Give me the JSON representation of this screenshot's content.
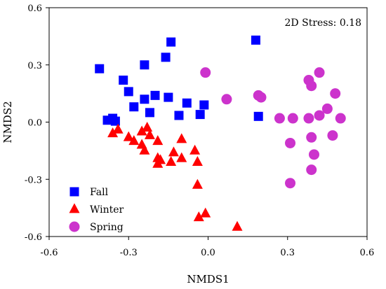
{
  "chart_data": {
    "type": "scatter",
    "xlabel": "NMDS1",
    "ylabel": "NMDS2",
    "xlim": [
      -0.6,
      0.6
    ],
    "ylim": [
      -0.6,
      0.6
    ],
    "x_ticks": [
      -0.6,
      -0.3,
      0.0,
      0.3,
      0.6
    ],
    "y_ticks": [
      -0.6,
      -0.3,
      0.0,
      0.3,
      0.6
    ],
    "x_tick_labels": [
      "-0.6",
      "-0.3",
      "0.0",
      "0.3",
      "0.6"
    ],
    "y_tick_labels": [
      "-0.6",
      "-0.3",
      "0.0",
      "0.3",
      "0.6"
    ],
    "annotation": "2D Stress: 0.18",
    "grid": false,
    "legend_position": "bottom-left",
    "series": [
      {
        "name": "Fall",
        "marker": "square",
        "color": "#0000ff",
        "points": [
          [
            -0.41,
            0.28
          ],
          [
            -0.14,
            0.42
          ],
          [
            -0.16,
            0.34
          ],
          [
            -0.24,
            0.3
          ],
          [
            -0.32,
            0.22
          ],
          [
            -0.3,
            0.16
          ],
          [
            -0.2,
            0.14
          ],
          [
            -0.15,
            0.13
          ],
          [
            -0.24,
            0.12
          ],
          [
            -0.28,
            0.08
          ],
          [
            -0.22,
            0.05
          ],
          [
            -0.36,
            0.02
          ],
          [
            -0.38,
            0.01
          ],
          [
            -0.35,
            0.005
          ],
          [
            -0.11,
            0.035
          ],
          [
            -0.08,
            0.1
          ],
          [
            -0.03,
            0.04
          ],
          [
            -0.015,
            0.09
          ],
          [
            0.18,
            0.43
          ],
          [
            0.19,
            0.03
          ]
        ]
      },
      {
        "name": "Winter",
        "marker": "triangle",
        "color": "#ff0000",
        "points": [
          [
            -0.36,
            -0.06
          ],
          [
            -0.34,
            -0.04
          ],
          [
            -0.3,
            -0.08
          ],
          [
            -0.28,
            -0.1
          ],
          [
            -0.25,
            -0.05
          ],
          [
            -0.23,
            -0.03
          ],
          [
            -0.22,
            -0.07
          ],
          [
            -0.25,
            -0.12
          ],
          [
            -0.24,
            -0.15
          ],
          [
            -0.19,
            -0.1
          ],
          [
            -0.19,
            -0.19
          ],
          [
            -0.19,
            -0.22
          ],
          [
            -0.18,
            -0.2
          ],
          [
            -0.14,
            -0.21
          ],
          [
            -0.13,
            -0.16
          ],
          [
            -0.1,
            -0.09
          ],
          [
            -0.1,
            -0.19
          ],
          [
            -0.05,
            -0.15
          ],
          [
            -0.04,
            -0.21
          ],
          [
            -0.04,
            -0.33
          ],
          [
            -0.035,
            -0.5
          ],
          [
            -0.01,
            -0.48
          ],
          [
            0.11,
            -0.55
          ]
        ]
      },
      {
        "name": "Spring",
        "marker": "circle",
        "color": "#cc33cc",
        "points": [
          [
            -0.01,
            0.26
          ],
          [
            0.07,
            0.12
          ],
          [
            0.19,
            0.14
          ],
          [
            0.2,
            0.13
          ],
          [
            0.27,
            0.02
          ],
          [
            0.32,
            0.02
          ],
          [
            0.31,
            -0.11
          ],
          [
            0.31,
            -0.32
          ],
          [
            0.38,
            0.22
          ],
          [
            0.39,
            0.19
          ],
          [
            0.42,
            0.26
          ],
          [
            0.45,
            0.07
          ],
          [
            0.48,
            0.15
          ],
          [
            0.5,
            0.02
          ],
          [
            0.38,
            0.02
          ],
          [
            0.39,
            -0.08
          ],
          [
            0.42,
            0.035
          ],
          [
            0.4,
            -0.17
          ],
          [
            0.39,
            -0.25
          ],
          [
            0.47,
            -0.07
          ]
        ]
      }
    ]
  }
}
